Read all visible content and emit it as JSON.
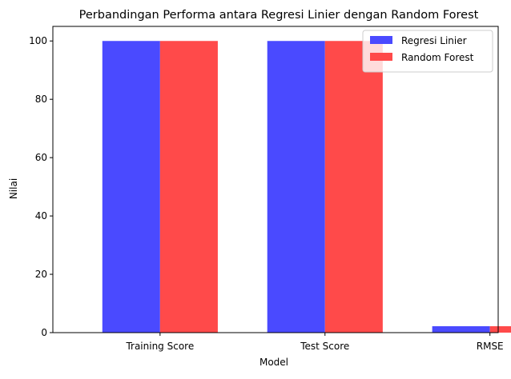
{
  "chart_data": {
    "type": "bar",
    "title": "Perbandingan Performa antara Regresi Linier dengan Random Forest",
    "xlabel": "Model",
    "ylabel": "Nilai",
    "categories": [
      "Training Score",
      "Test Score",
      "RMSE"
    ],
    "series": [
      {
        "name": "Regresi Linier",
        "values": [
          100,
          100,
          2.2
        ],
        "color": "#4a4aff"
      },
      {
        "name": "Random Forest",
        "values": [
          100,
          100,
          2.2
        ],
        "color": "#ff4a4a"
      }
    ],
    "ylim": [
      0,
      105
    ],
    "yticks": [
      "0",
      "20",
      "40",
      "60",
      "80",
      "100"
    ],
    "grid": false,
    "legend_position": "top-right"
  }
}
